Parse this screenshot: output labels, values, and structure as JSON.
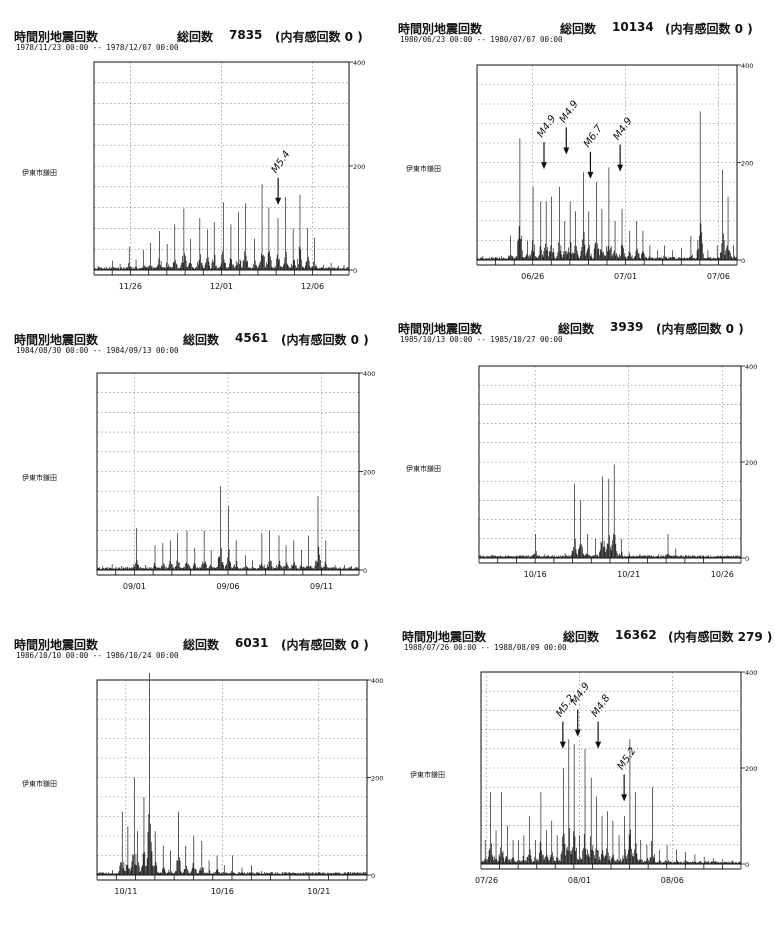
{
  "chart_data": [
    {
      "type": "bar",
      "title": "時間別地震回数",
      "total_label": "総回数",
      "total": "7835",
      "felt": "(内有感回数 0   )",
      "period": "1978/11/23 00:00 -- 1978/12/07 00:00",
      "station": "伊東市鎌田",
      "ylim": [
        0,
        400
      ],
      "yticks": [
        "400",
        "200",
        "0"
      ],
      "xlim": [
        0,
        14
      ],
      "xticks": [
        {
          "x": 2,
          "label": "11/26"
        },
        {
          "x": 7,
          "label": "12/01"
        },
        {
          "x": 12,
          "label": "12/06"
        }
      ],
      "peaks": [
        [
          0.2,
          8
        ],
        [
          0.6,
          5
        ],
        [
          1.0,
          18
        ],
        [
          1.4,
          12
        ],
        [
          1.9,
          45
        ],
        [
          2.3,
          20
        ],
        [
          2.7,
          38
        ],
        [
          3.1,
          52
        ],
        [
          3.6,
          75
        ],
        [
          4.0,
          50
        ],
        [
          4.4,
          88
        ],
        [
          4.9,
          118
        ],
        [
          5.3,
          60
        ],
        [
          5.8,
          100
        ],
        [
          6.2,
          78
        ],
        [
          6.6,
          92
        ],
        [
          7.1,
          130
        ],
        [
          7.5,
          88
        ],
        [
          7.9,
          112
        ],
        [
          8.3,
          128
        ],
        [
          8.8,
          60
        ],
        [
          9.2,
          165
        ],
        [
          9.6,
          120
        ],
        [
          10.1,
          100
        ],
        [
          10.5,
          140
        ],
        [
          10.9,
          80
        ],
        [
          11.3,
          145
        ],
        [
          11.7,
          80
        ],
        [
          12.1,
          62
        ],
        [
          12.6,
          10
        ],
        [
          13.0,
          14
        ],
        [
          13.4,
          8
        ],
        [
          13.7,
          10
        ],
        [
          14.0,
          6
        ]
      ],
      "annotations": [
        {
          "text": "M5.4",
          "x": 10.0,
          "y": 185
        }
      ]
    },
    {
      "type": "bar",
      "title": "時間別地震回数",
      "total_label": "総回数",
      "total": "10134",
      "felt": "(内有感回数 0    )",
      "period": "1980/06/23 00:00 -- 1980/07/07 00:00",
      "station": "伊東市鎌田",
      "ylim": [
        0,
        400
      ],
      "yticks": [
        "400",
        "200",
        "0"
      ],
      "xlim": [
        0,
        14
      ],
      "xticks": [
        {
          "x": 3,
          "label": "06/26"
        },
        {
          "x": 8,
          "label": "07/01"
        },
        {
          "x": 13,
          "label": "07/06"
        }
      ],
      "peaks": [
        [
          0.3,
          8
        ],
        [
          0.8,
          6
        ],
        [
          1.3,
          8
        ],
        [
          1.8,
          50
        ],
        [
          2.3,
          250
        ],
        [
          2.7,
          40
        ],
        [
          3.0,
          150
        ],
        [
          3.4,
          120
        ],
        [
          3.7,
          120
        ],
        [
          4.0,
          130
        ],
        [
          4.4,
          150
        ],
        [
          4.7,
          80
        ],
        [
          5.0,
          120
        ],
        [
          5.3,
          100
        ],
        [
          5.7,
          180
        ],
        [
          6.0,
          100
        ],
        [
          6.4,
          160
        ],
        [
          6.7,
          105
        ],
        [
          7.1,
          190
        ],
        [
          7.4,
          80
        ],
        [
          7.8,
          105
        ],
        [
          8.2,
          60
        ],
        [
          8.6,
          80
        ],
        [
          8.9,
          60
        ],
        [
          9.3,
          30
        ],
        [
          9.7,
          20
        ],
        [
          10.1,
          30
        ],
        [
          10.5,
          20
        ],
        [
          11.0,
          25
        ],
        [
          11.5,
          50
        ],
        [
          12.0,
          305
        ],
        [
          12.4,
          20
        ],
        [
          12.9,
          30
        ],
        [
          13.2,
          185
        ],
        [
          13.5,
          130
        ],
        [
          13.8,
          30
        ]
      ],
      "annotations": [
        {
          "text": "M4.9",
          "x": 3.5,
          "y": 250
        },
        {
          "text": "M4.9",
          "x": 4.7,
          "y": 280
        },
        {
          "text": "M6.7",
          "x": 6.0,
          "y": 230
        },
        {
          "text": "M4.9",
          "x": 7.6,
          "y": 245
        }
      ]
    },
    {
      "type": "bar",
      "title": "時間別地震回数",
      "total_label": "総回数",
      "total": "4561",
      "felt": "(内有感回数 0    )",
      "period": "1984/08/30 00:00 -- 1984/09/13 00:00",
      "station": "伊東市鎌田",
      "ylim": [
        0,
        400
      ],
      "yticks": [
        "400",
        "200",
        "0"
      ],
      "xlim": [
        0,
        14
      ],
      "xticks": [
        {
          "x": 2,
          "label": "09/01"
        },
        {
          "x": 7,
          "label": "09/06"
        },
        {
          "x": 12,
          "label": "09/11"
        }
      ],
      "peaks": [
        [
          0.3,
          8
        ],
        [
          0.8,
          12
        ],
        [
          1.3,
          8
        ],
        [
          2.1,
          85
        ],
        [
          2.6,
          10
        ],
        [
          3.1,
          50
        ],
        [
          3.5,
          55
        ],
        [
          3.9,
          60
        ],
        [
          4.3,
          75
        ],
        [
          4.8,
          80
        ],
        [
          5.2,
          45
        ],
        [
          5.7,
          80
        ],
        [
          6.1,
          40
        ],
        [
          6.6,
          170
        ],
        [
          7.0,
          130
        ],
        [
          7.4,
          60
        ],
        [
          7.9,
          30
        ],
        [
          8.3,
          20
        ],
        [
          8.8,
          75
        ],
        [
          9.2,
          80
        ],
        [
          9.7,
          70
        ],
        [
          10.1,
          50
        ],
        [
          10.5,
          60
        ],
        [
          10.9,
          40
        ],
        [
          11.3,
          70
        ],
        [
          11.8,
          150
        ],
        [
          12.2,
          60
        ],
        [
          12.7,
          10
        ],
        [
          13.2,
          10
        ],
        [
          13.6,
          8
        ]
      ],
      "annotations": []
    },
    {
      "type": "bar",
      "title": "時間別地震回数",
      "total_label": "総回数",
      "total": "3939",
      "felt": "(内有感回数 0    )",
      "period": "1985/10/13 00:00 -- 1985/10/27 00:00",
      "station": "伊東市鎌田",
      "ylim": [
        0,
        400
      ],
      "yticks": [
        "400",
        "200",
        "0"
      ],
      "xlim": [
        0,
        14
      ],
      "xticks": [
        {
          "x": 3,
          "label": "10/16"
        },
        {
          "x": 8,
          "label": "10/21"
        },
        {
          "x": 13,
          "label": "10/26"
        }
      ],
      "peaks": [
        [
          0.5,
          3
        ],
        [
          1.5,
          4
        ],
        [
          2.5,
          6
        ],
        [
          3.0,
          50
        ],
        [
          3.5,
          8
        ],
        [
          4.0,
          6
        ],
        [
          4.6,
          10
        ],
        [
          5.1,
          155
        ],
        [
          5.4,
          120
        ],
        [
          5.8,
          50
        ],
        [
          6.2,
          40
        ],
        [
          6.6,
          170
        ],
        [
          6.9,
          165
        ],
        [
          7.2,
          195
        ],
        [
          7.6,
          40
        ],
        [
          8.0,
          12
        ],
        [
          8.6,
          8
        ],
        [
          9.2,
          6
        ],
        [
          9.6,
          8
        ],
        [
          10.1,
          50
        ],
        [
          10.5,
          20
        ],
        [
          11.0,
          6
        ],
        [
          11.8,
          5
        ],
        [
          12.6,
          4
        ],
        [
          13.4,
          3
        ]
      ],
      "annotations": []
    },
    {
      "type": "bar",
      "title": "時間別地震回数",
      "total_label": "総回数",
      "total": "6031",
      "felt": "(内有感回数 0    )",
      "period": "1986/10/10 00:00 -- 1986/10/24 00:00",
      "station": "伊東市鎌田",
      "ylim": [
        0,
        400
      ],
      "yticks": [
        "400",
        "200",
        "0"
      ],
      "xlim": [
        0,
        14
      ],
      "xticks": [
        {
          "x": 1.5,
          "label": "10/11"
        },
        {
          "x": 6.5,
          "label": "10/16"
        },
        {
          "x": 11.5,
          "label": "10/21"
        }
      ],
      "peaks": [
        [
          0.8,
          10
        ],
        [
          1.3,
          130
        ],
        [
          1.6,
          100
        ],
        [
          1.9,
          200
        ],
        [
          2.1,
          90
        ],
        [
          2.4,
          160
        ],
        [
          2.7,
          415
        ],
        [
          3.0,
          90
        ],
        [
          3.4,
          60
        ],
        [
          3.8,
          50
        ],
        [
          4.2,
          130
        ],
        [
          4.6,
          60
        ],
        [
          5.0,
          80
        ],
        [
          5.4,
          70
        ],
        [
          5.8,
          30
        ],
        [
          6.2,
          40
        ],
        [
          6.6,
          20
        ],
        [
          7.0,
          40
        ],
        [
          7.5,
          15
        ],
        [
          8.0,
          20
        ],
        [
          8.5,
          8
        ],
        [
          9.0,
          6
        ],
        [
          9.6,
          5
        ],
        [
          10.2,
          4
        ],
        [
          11.0,
          4
        ],
        [
          12.0,
          3
        ],
        [
          13.0,
          2
        ]
      ],
      "annotations": []
    },
    {
      "type": "bar",
      "title": "時間別地震回数",
      "total_label": "総回数",
      "total": "16362",
      "felt": "(内有感回数 279  )",
      "period": "1988/07/26 00:00 -- 1988/08/09 00:00",
      "station": "伊東市鎌田",
      "ylim": [
        0,
        400
      ],
      "yticks": [
        "400",
        "200",
        "0"
      ],
      "xlim": [
        0,
        14
      ],
      "xticks": [
        {
          "x": 0.3,
          "label": "07/26"
        },
        {
          "x": 5.3,
          "label": "08/01"
        },
        {
          "x": 10.3,
          "label": "08/06"
        }
      ],
      "peaks": [
        [
          0.2,
          50
        ],
        [
          0.5,
          150
        ],
        [
          0.8,
          70
        ],
        [
          1.1,
          150
        ],
        [
          1.4,
          80
        ],
        [
          1.7,
          50
        ],
        [
          2.0,
          50
        ],
        [
          2.3,
          60
        ],
        [
          2.6,
          100
        ],
        [
          2.9,
          50
        ],
        [
          3.2,
          150
        ],
        [
          3.5,
          70
        ],
        [
          3.8,
          90
        ],
        [
          4.1,
          60
        ],
        [
          4.4,
          200
        ],
        [
          4.7,
          260
        ],
        [
          5.0,
          250
        ],
        [
          5.3,
          60
        ],
        [
          5.6,
          240
        ],
        [
          5.9,
          180
        ],
        [
          6.2,
          140
        ],
        [
          6.5,
          100
        ],
        [
          6.8,
          110
        ],
        [
          7.1,
          90
        ],
        [
          7.4,
          60
        ],
        [
          7.7,
          100
        ],
        [
          8.0,
          260
        ],
        [
          8.3,
          150
        ],
        [
          8.6,
          50
        ],
        [
          8.9,
          40
        ],
        [
          9.2,
          160
        ],
        [
          9.6,
          30
        ],
        [
          10.0,
          40
        ],
        [
          10.5,
          30
        ],
        [
          11.0,
          25
        ],
        [
          11.5,
          20
        ],
        [
          12.0,
          15
        ],
        [
          12.5,
          12
        ],
        [
          13.0,
          10
        ],
        [
          13.5,
          8
        ]
      ],
      "annotations": [
        {
          "text": "M5.2",
          "x": 4.3,
          "y": 305
        },
        {
          "text": "M4.9",
          "x": 5.1,
          "y": 330
        },
        {
          "text": "M4.8",
          "x": 6.2,
          "y": 305
        },
        {
          "text": "M5.2",
          "x": 7.6,
          "y": 195
        }
      ]
    }
  ]
}
